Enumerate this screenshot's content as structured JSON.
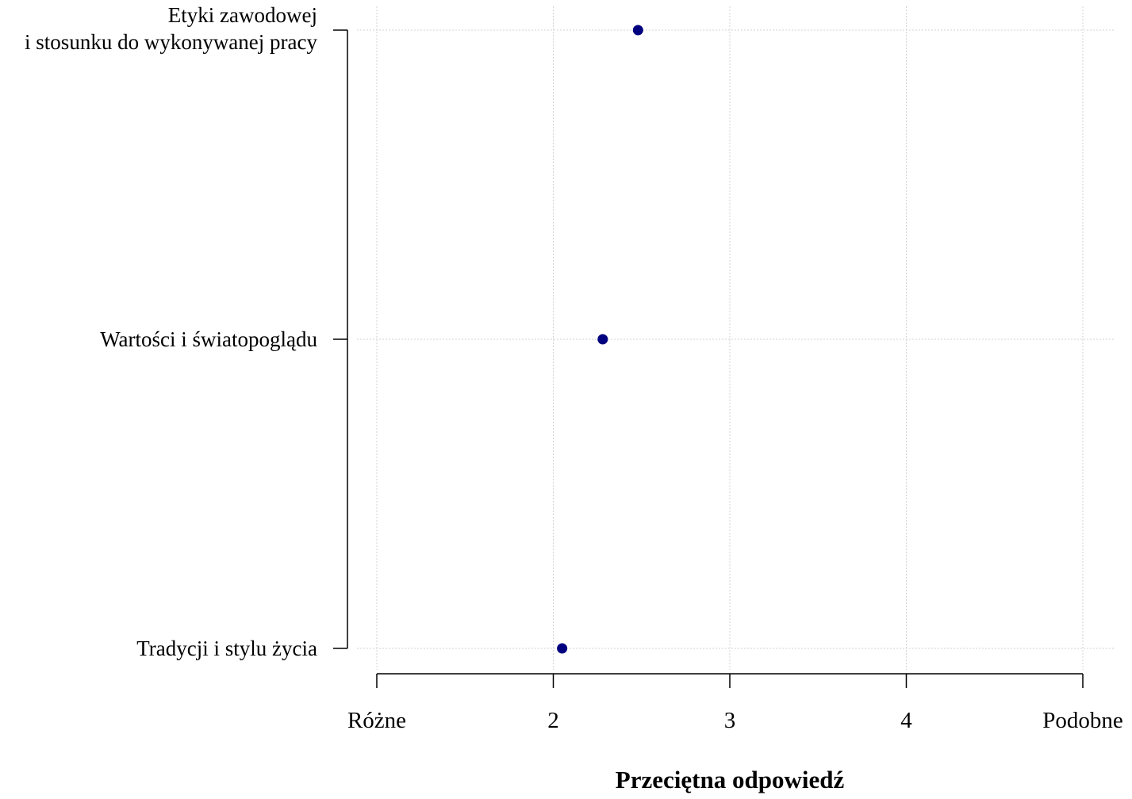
{
  "chart_data": {
    "type": "scatter",
    "title": "",
    "xlabel": "Przeciętna odpowiedź",
    "ylabel": "",
    "xlim": [
      1,
      5
    ],
    "x_ticks": [
      1,
      2,
      3,
      4,
      5
    ],
    "x_tick_labels": [
      "Różne",
      "2",
      "3",
      "4",
      "Podobne"
    ],
    "categories": [
      [
        "Etyki zawodowej",
        "i stosunku do wykonywanej pracy"
      ],
      [
        "Wartości i światopoglądu"
      ],
      [
        "Tradycji i stylu życia"
      ]
    ],
    "values": [
      2.48,
      2.28,
      2.05
    ],
    "grid": true,
    "point_color": "#00007f",
    "grid_color": "#d3d3d3"
  }
}
